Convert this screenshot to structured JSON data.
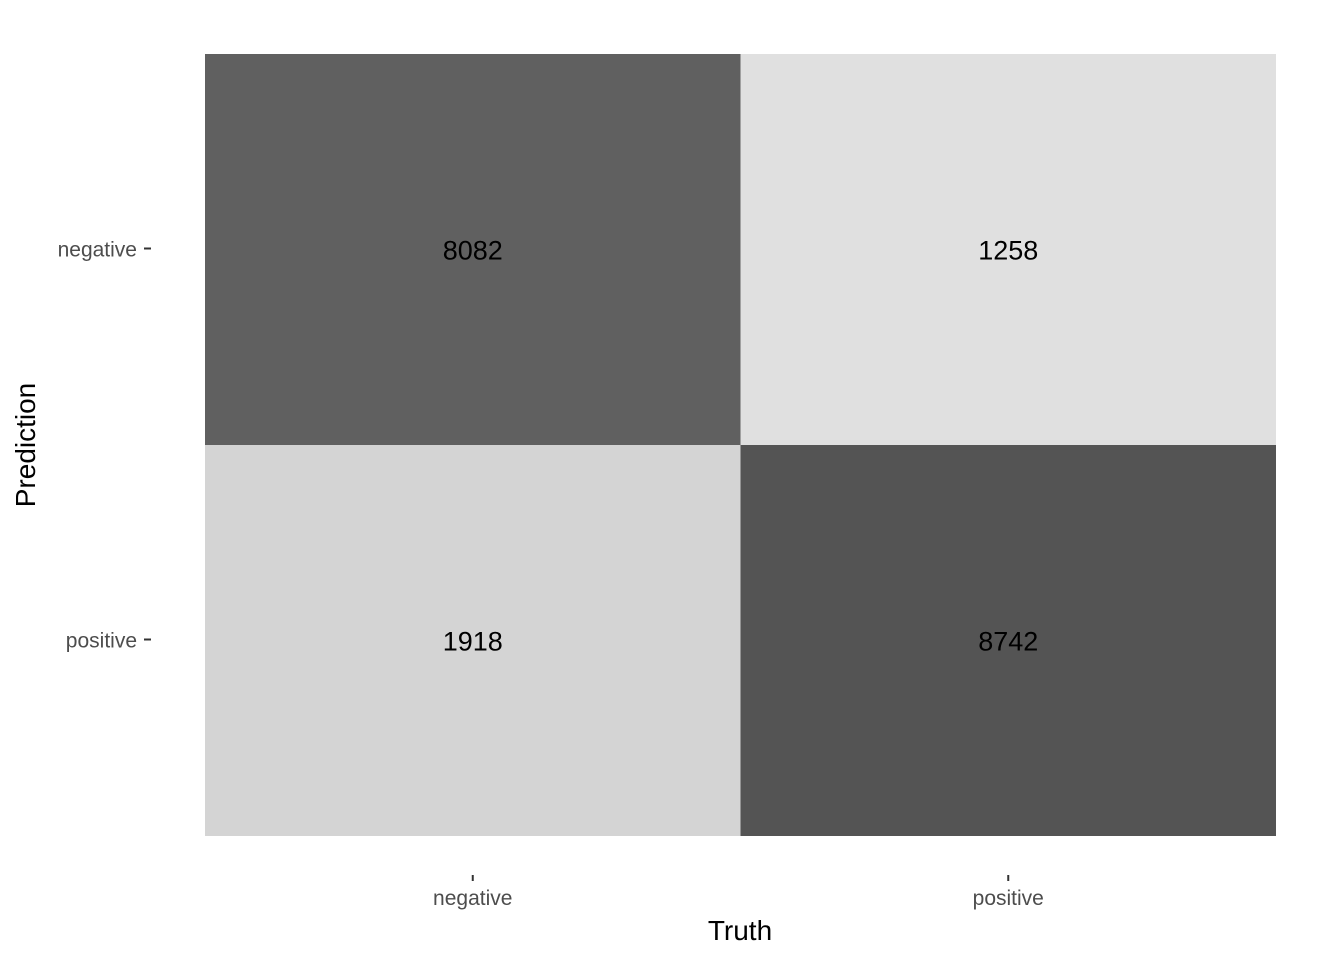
{
  "chart_data": {
    "type": "heatmap",
    "title": "",
    "xlabel": "Truth",
    "ylabel": "Prediction",
    "x_categories": [
      "negative",
      "positive"
    ],
    "y_categories": [
      "negative",
      "positive"
    ],
    "cells": [
      {
        "truth": "negative",
        "prediction": "negative",
        "value": 8082,
        "label": "8082"
      },
      {
        "truth": "positive",
        "prediction": "negative",
        "value": 1258,
        "label": "1258"
      },
      {
        "truth": "negative",
        "prediction": "positive",
        "value": 1918,
        "label": "1918"
      },
      {
        "truth": "positive",
        "prediction": "positive",
        "value": 8742,
        "label": "8742"
      }
    ],
    "color_scale": {
      "low": "#e0e0e0",
      "high": "#545454"
    },
    "legend": "none",
    "grid": false
  }
}
